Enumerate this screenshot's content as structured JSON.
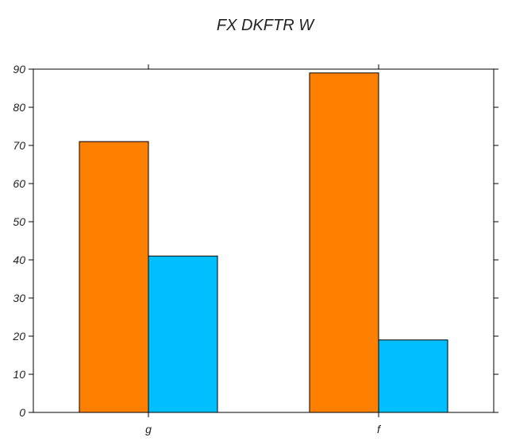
{
  "chart_data": {
    "type": "bar",
    "title": "FX DKFTR W",
    "xlabel": "",
    "ylabel": "",
    "categories": [
      "g",
      "f"
    ],
    "series": [
      {
        "values": [
          71,
          89
        ],
        "color": "#ff8000"
      },
      {
        "values": [
          41,
          19
        ],
        "color": "#00bfff"
      }
    ],
    "ylim": [
      0,
      90
    ],
    "yticks": [
      0,
      10,
      20,
      30,
      40,
      50,
      60,
      70,
      80,
      90
    ],
    "grid": false,
    "legend": false
  }
}
